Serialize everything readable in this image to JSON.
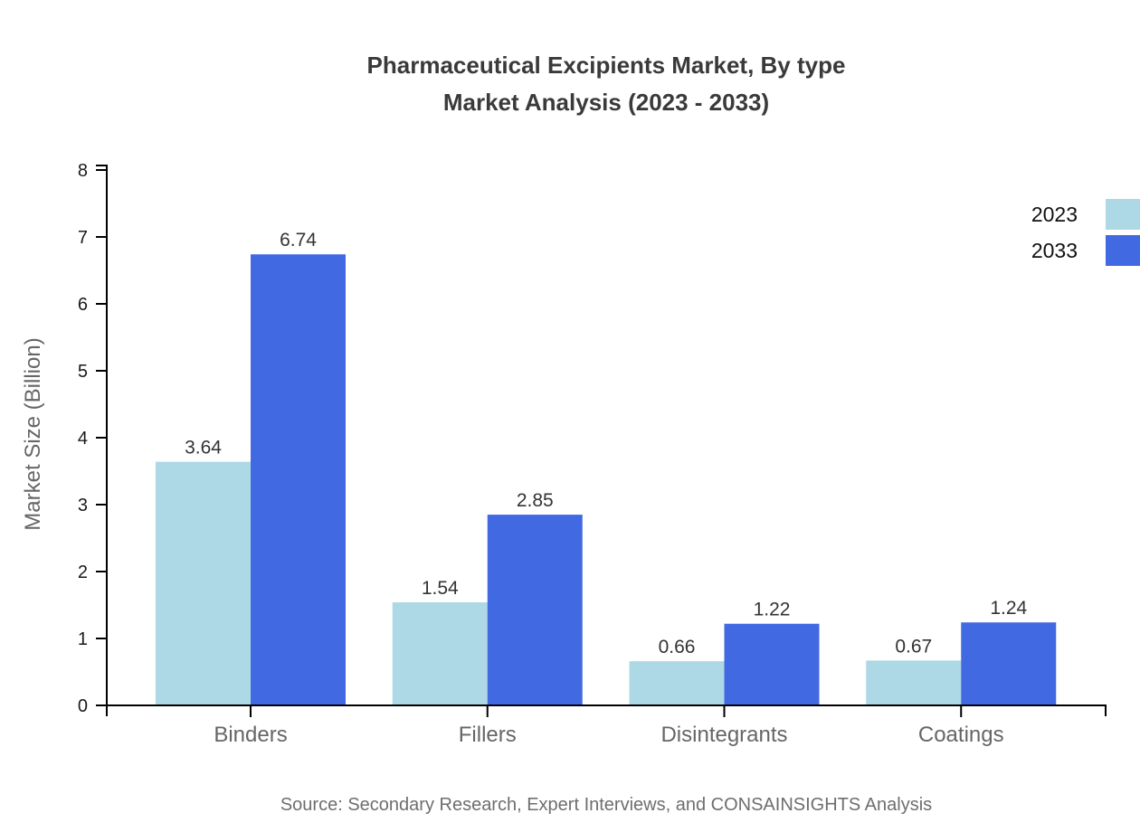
{
  "header": {
    "title_line1": "Pharmaceutical Excipients Market, By type",
    "title_line2": "Market Analysis (2023 - 2033)"
  },
  "legend": {
    "items": [
      {
        "label": "2023",
        "color": "#ADD8E6"
      },
      {
        "label": "2033",
        "color": "#4169E1"
      }
    ]
  },
  "axis": {
    "y_label": "Market Size (Billion)"
  },
  "footer": {
    "source": "Source: Secondary Research, Expert Interviews, and CONSAINSIGHTS Analysis"
  },
  "chart_data": {
    "type": "bar",
    "title": "Pharmaceutical Excipients Market, By type — Market Analysis (2023 - 2033)",
    "categories": [
      "Binders",
      "Fillers",
      "Disintegrants",
      "Coatings"
    ],
    "series": [
      {
        "name": "2023",
        "color": "#ADD8E6",
        "values": [
          3.64,
          1.54,
          0.66,
          0.67
        ]
      },
      {
        "name": "2033",
        "color": "#4169E1",
        "values": [
          6.74,
          2.85,
          1.22,
          1.24
        ]
      }
    ],
    "xlabel": "",
    "ylabel": "Market Size (Billion)",
    "ylim": [
      0,
      8
    ],
    "yticks": [
      0,
      1,
      2,
      3,
      4,
      5,
      6,
      7,
      8
    ],
    "grid": false,
    "value_labels": true,
    "legend_position": "top-right",
    "source": "Source: Secondary Research, Expert Interviews, and CONSAINSIGHTS Analysis"
  }
}
